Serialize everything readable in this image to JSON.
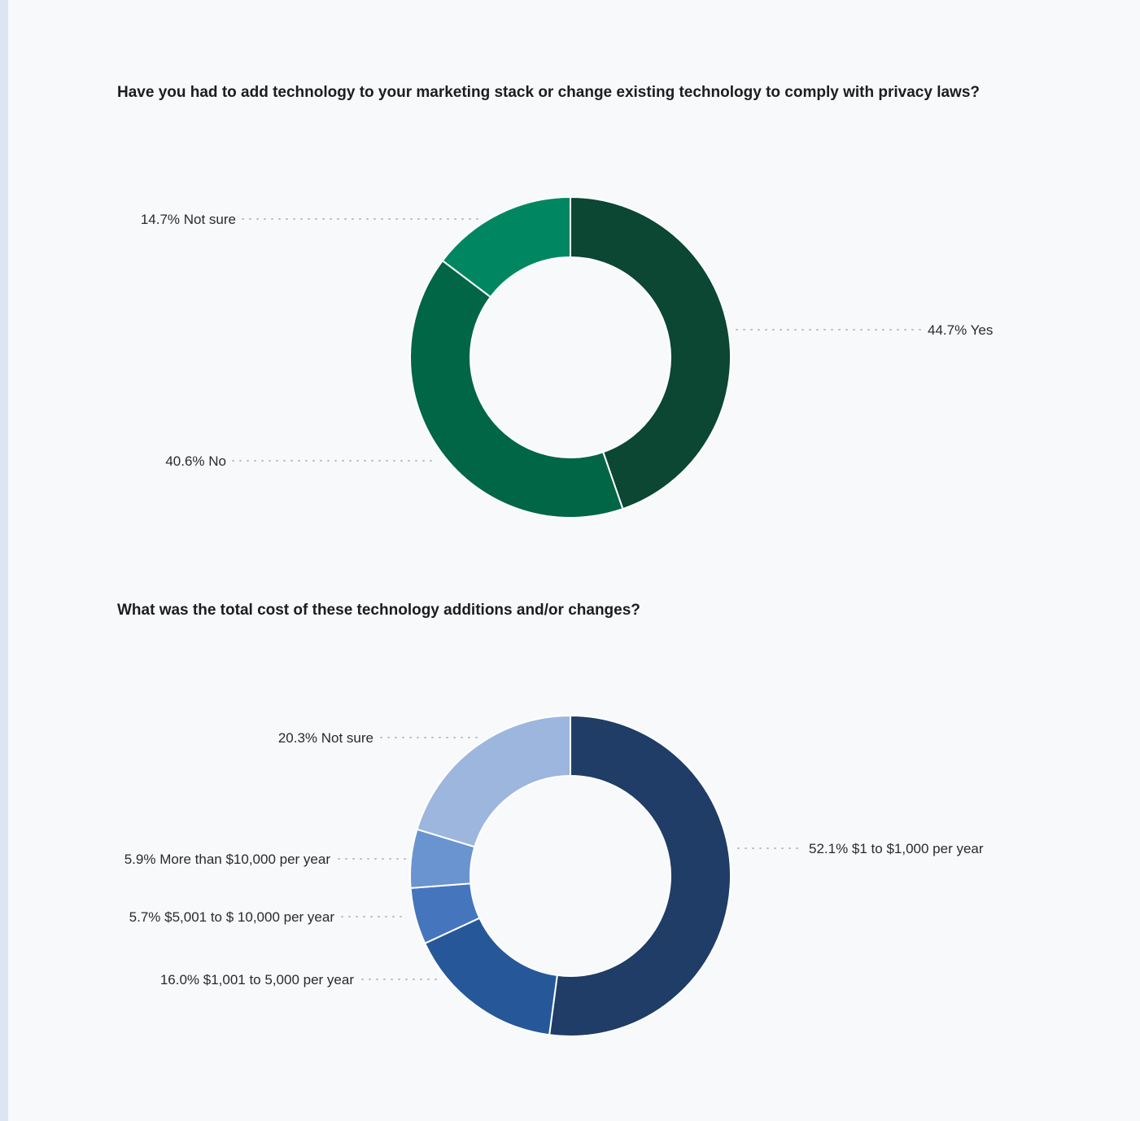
{
  "chart_data": [
    {
      "type": "pie",
      "title": "Have you had to add technology to your marketing stack or change existing technology to comply with privacy laws?",
      "slices": [
        {
          "label": "44.7% Yes",
          "category": "Yes",
          "value": 44.7,
          "color": "#0b4733"
        },
        {
          "label": "40.6% No",
          "category": "No",
          "value": 40.6,
          "color": "#016645"
        },
        {
          "label": "14.7% Not sure",
          "category": "Not sure",
          "value": 14.7,
          "color": "#008762"
        }
      ]
    },
    {
      "type": "pie",
      "title": "What was the total cost of these technology additions and/or changes?",
      "slices": [
        {
          "label": "52.1% $1 to $1,000 per year",
          "category": "$1 to $1,000 per year",
          "value": 52.1,
          "color": "#1f3d66"
        },
        {
          "label": "16.0% $1,001 to 5,000 per year",
          "category": "$1,001 to 5,000 per year",
          "value": 16.0,
          "color": "#265899"
        },
        {
          "label": "5.7% $5,001 to $ 10,000 per year",
          "category": "$5,001 to $ 10,000 per year",
          "value": 5.7,
          "color": "#4576bd"
        },
        {
          "label": "5.9% More than $10,000 per year",
          "category": "More than $10,000 per year",
          "value": 5.9,
          "color": "#6994cf"
        },
        {
          "label": "20.3% Not sure",
          "category": "Not sure",
          "value": 20.3,
          "color": "#9db6de"
        }
      ]
    }
  ]
}
